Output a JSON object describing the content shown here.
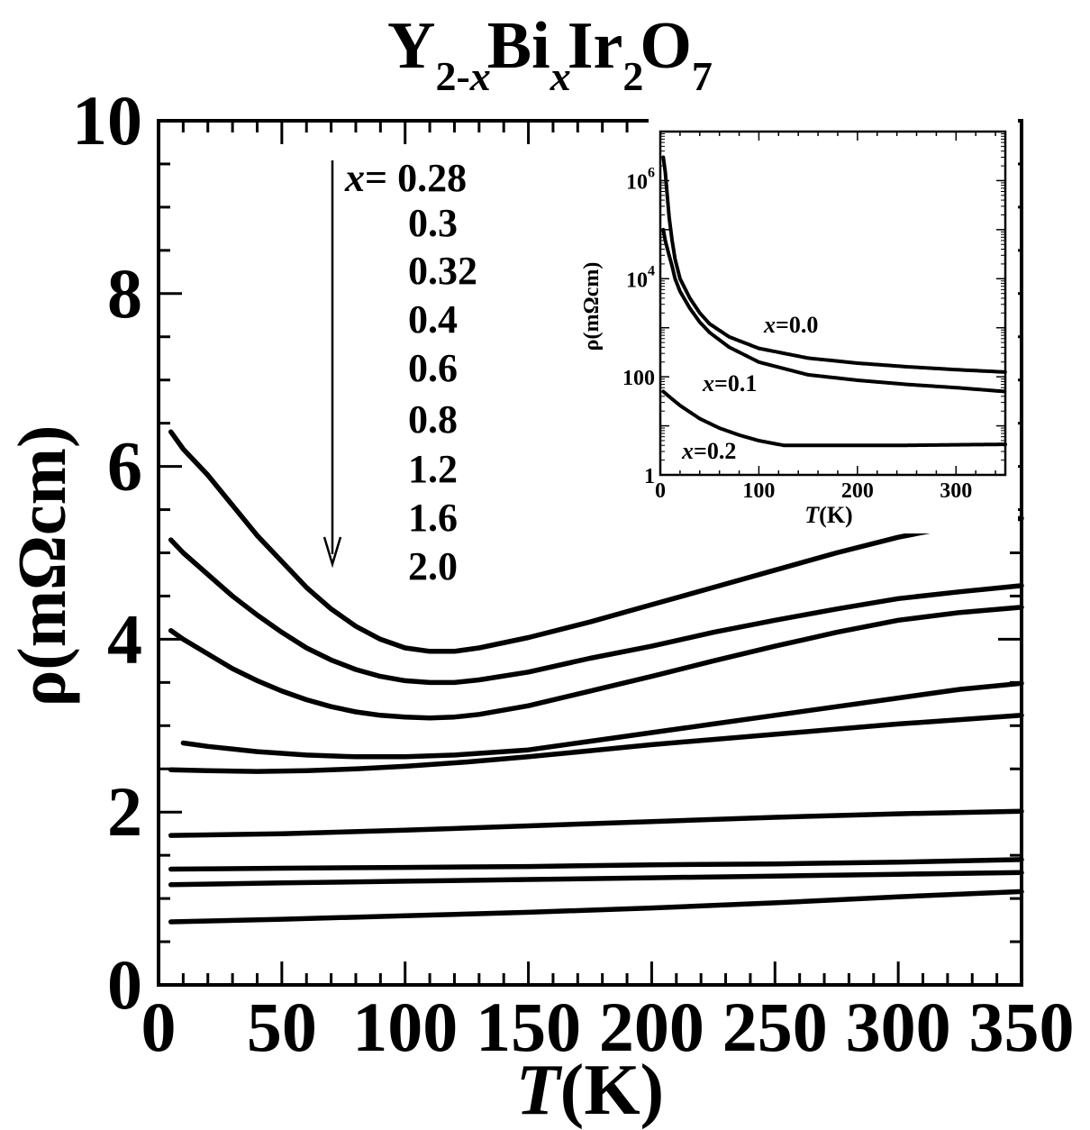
{
  "chart_data": [
    {
      "id": "main",
      "type": "line",
      "title": {
        "parts": [
          {
            "text": "Y",
            "sub": false
          },
          {
            "text": "2-",
            "sub": true
          },
          {
            "text": "x",
            "sub": true,
            "italic": true
          },
          {
            "text": "Bi",
            "sub": false
          },
          {
            "text": "x",
            "sub": true,
            "italic": true
          },
          {
            "text": "Ir",
            "sub": false
          },
          {
            "text": "2",
            "sub": true
          },
          {
            "text": "O",
            "sub": false
          },
          {
            "text": "7",
            "sub": true
          }
        ]
      },
      "xlabel": {
        "italic": "T",
        "rest": "(K)"
      },
      "ylabel": "ρ(mΩcm)",
      "xlim": [
        0,
        350
      ],
      "ylim": [
        0,
        10
      ],
      "xticks": [
        0,
        50,
        100,
        150,
        200,
        250,
        300,
        350
      ],
      "yticks": [
        0,
        2,
        4,
        6,
        8,
        10
      ],
      "legend": {
        "prefix": "x=",
        "entries": [
          "0.28",
          "0.3",
          "0.32",
          "0.4",
          "0.6",
          "0.8",
          "1.2",
          "1.6",
          "2.0"
        ],
        "arrow": "downward"
      },
      "series": [
        {
          "label": "0.28",
          "points": [
            [
              5,
              6.4
            ],
            [
              10,
              6.2
            ],
            [
              20,
              5.9
            ],
            [
              30,
              5.55
            ],
            [
              40,
              5.2
            ],
            [
              50,
              4.9
            ],
            [
              60,
              4.6
            ],
            [
              70,
              4.35
            ],
            [
              80,
              4.15
            ],
            [
              90,
              4.0
            ],
            [
              100,
              3.9
            ],
            [
              110,
              3.86
            ],
            [
              120,
              3.86
            ],
            [
              130,
              3.9
            ],
            [
              150,
              4.02
            ],
            [
              175,
              4.2
            ],
            [
              200,
              4.4
            ],
            [
              225,
              4.6
            ],
            [
              250,
              4.8
            ],
            [
              275,
              5.0
            ],
            [
              300,
              5.18
            ],
            [
              325,
              5.32
            ],
            [
              350,
              5.4
            ]
          ]
        },
        {
          "label": "0.3",
          "points": [
            [
              5,
              5.15
            ],
            [
              10,
              5.0
            ],
            [
              20,
              4.75
            ],
            [
              30,
              4.5
            ],
            [
              40,
              4.28
            ],
            [
              50,
              4.08
            ],
            [
              60,
              3.9
            ],
            [
              70,
              3.76
            ],
            [
              80,
              3.65
            ],
            [
              90,
              3.57
            ],
            [
              100,
              3.52
            ],
            [
              110,
              3.5
            ],
            [
              120,
              3.5
            ],
            [
              130,
              3.53
            ],
            [
              150,
              3.62
            ],
            [
              175,
              3.78
            ],
            [
              200,
              3.92
            ],
            [
              225,
              4.08
            ],
            [
              250,
              4.22
            ],
            [
              275,
              4.35
            ],
            [
              300,
              4.47
            ],
            [
              325,
              4.55
            ],
            [
              350,
              4.62
            ]
          ]
        },
        {
          "label": "0.32",
          "points": [
            [
              5,
              4.1
            ],
            [
              10,
              4.0
            ],
            [
              20,
              3.83
            ],
            [
              30,
              3.66
            ],
            [
              40,
              3.52
            ],
            [
              50,
              3.4
            ],
            [
              60,
              3.3
            ],
            [
              70,
              3.22
            ],
            [
              80,
              3.16
            ],
            [
              90,
              3.12
            ],
            [
              100,
              3.1
            ],
            [
              110,
              3.09
            ],
            [
              120,
              3.1
            ],
            [
              130,
              3.13
            ],
            [
              150,
              3.23
            ],
            [
              175,
              3.4
            ],
            [
              200,
              3.57
            ],
            [
              225,
              3.75
            ],
            [
              250,
              3.92
            ],
            [
              275,
              4.08
            ],
            [
              300,
              4.22
            ],
            [
              325,
              4.31
            ],
            [
              350,
              4.37
            ]
          ]
        },
        {
          "label": "0.4",
          "points": [
            [
              10,
              2.8
            ],
            [
              20,
              2.76
            ],
            [
              40,
              2.7
            ],
            [
              60,
              2.66
            ],
            [
              80,
              2.64
            ],
            [
              100,
              2.64
            ],
            [
              120,
              2.66
            ],
            [
              150,
              2.72
            ],
            [
              175,
              2.82
            ],
            [
              200,
              2.92
            ],
            [
              225,
              3.02
            ],
            [
              250,
              3.12
            ],
            [
              275,
              3.22
            ],
            [
              300,
              3.32
            ],
            [
              325,
              3.42
            ],
            [
              350,
              3.49
            ]
          ]
        },
        {
          "label": "0.6",
          "points": [
            [
              5,
              2.49
            ],
            [
              20,
              2.48
            ],
            [
              40,
              2.47
            ],
            [
              60,
              2.48
            ],
            [
              80,
              2.5
            ],
            [
              100,
              2.53
            ],
            [
              125,
              2.58
            ],
            [
              150,
              2.64
            ],
            [
              175,
              2.71
            ],
            [
              200,
              2.78
            ],
            [
              225,
              2.84
            ],
            [
              250,
              2.9
            ],
            [
              275,
              2.96
            ],
            [
              300,
              3.02
            ],
            [
              325,
              3.07
            ],
            [
              350,
              3.12
            ]
          ]
        },
        {
          "label": "0.8",
          "points": [
            [
              5,
              1.73
            ],
            [
              50,
              1.75
            ],
            [
              100,
              1.79
            ],
            [
              150,
              1.84
            ],
            [
              200,
              1.89
            ],
            [
              250,
              1.94
            ],
            [
              300,
              1.98
            ],
            [
              350,
              2.01
            ]
          ]
        },
        {
          "label": "1.2",
          "points": [
            [
              5,
              1.34
            ],
            [
              50,
              1.35
            ],
            [
              100,
              1.36
            ],
            [
              150,
              1.37
            ],
            [
              200,
              1.39
            ],
            [
              250,
              1.4
            ],
            [
              300,
              1.42
            ],
            [
              350,
              1.45
            ]
          ]
        },
        {
          "label": "1.6",
          "points": [
            [
              5,
              1.16
            ],
            [
              50,
              1.18
            ],
            [
              100,
              1.2
            ],
            [
              150,
              1.22
            ],
            [
              200,
              1.24
            ],
            [
              250,
              1.26
            ],
            [
              300,
              1.28
            ],
            [
              350,
              1.3
            ]
          ]
        },
        {
          "label": "2.0",
          "points": [
            [
              5,
              0.73
            ],
            [
              50,
              0.76
            ],
            [
              100,
              0.8
            ],
            [
              150,
              0.84
            ],
            [
              200,
              0.89
            ],
            [
              250,
              0.95
            ],
            [
              300,
              1.02
            ],
            [
              350,
              1.08
            ]
          ]
        }
      ]
    },
    {
      "id": "inset",
      "type": "scatter",
      "yscale": "log",
      "xlabel": {
        "italic": "T",
        "rest": "(K)"
      },
      "ylabel": "ρ(mΩcm)",
      "xlim": [
        0,
        350
      ],
      "ylim": [
        1,
        10000000
      ],
      "xticks": [
        0,
        100,
        200,
        300
      ],
      "yticks": [
        {
          "value": 1,
          "base": "1",
          "exp": ""
        },
        {
          "value": 100,
          "base": "100",
          "exp": ""
        },
        {
          "value": 10000,
          "base": "10",
          "exp": "4"
        },
        {
          "value": 1000000,
          "base": "10",
          "exp": "6"
        }
      ],
      "series": [
        {
          "label": "x=0.0",
          "points": [
            [
              3,
              3000000
            ],
            [
              5,
              1500000
            ],
            [
              7,
              500000
            ],
            [
              9,
              180000
            ],
            [
              12,
              60000
            ],
            [
              15,
              25000
            ],
            [
              20,
              10000
            ],
            [
              30,
              4000
            ],
            [
              40,
              2000
            ],
            [
              50,
              1200
            ],
            [
              70,
              650
            ],
            [
              100,
              380
            ],
            [
              150,
              240
            ],
            [
              200,
              190
            ],
            [
              250,
              160
            ],
            [
              300,
              140
            ],
            [
              350,
              125
            ]
          ]
        },
        {
          "label": "x=0.1",
          "points": [
            [
              3,
              100000
            ],
            [
              5,
              60000
            ],
            [
              8,
              35000
            ],
            [
              12,
              18000
            ],
            [
              15,
              10000
            ],
            [
              20,
              5500
            ],
            [
              30,
              2500
            ],
            [
              40,
              1300
            ],
            [
              50,
              800
            ],
            [
              70,
              400
            ],
            [
              100,
              200
            ],
            [
              150,
              110
            ],
            [
              200,
              85
            ],
            [
              250,
              70
            ],
            [
              300,
              60
            ],
            [
              350,
              50
            ]
          ]
        },
        {
          "label": "x=0.2",
          "points": [
            [
              3,
              50
            ],
            [
              10,
              38
            ],
            [
              20,
              26
            ],
            [
              40,
              14
            ],
            [
              60,
              9
            ],
            [
              80,
              6.5
            ],
            [
              100,
              5
            ],
            [
              125,
              4
            ],
            [
              150,
              4
            ],
            [
              200,
              4
            ],
            [
              250,
              4
            ],
            [
              300,
              4.1
            ],
            [
              350,
              4.2
            ]
          ]
        }
      ]
    }
  ]
}
